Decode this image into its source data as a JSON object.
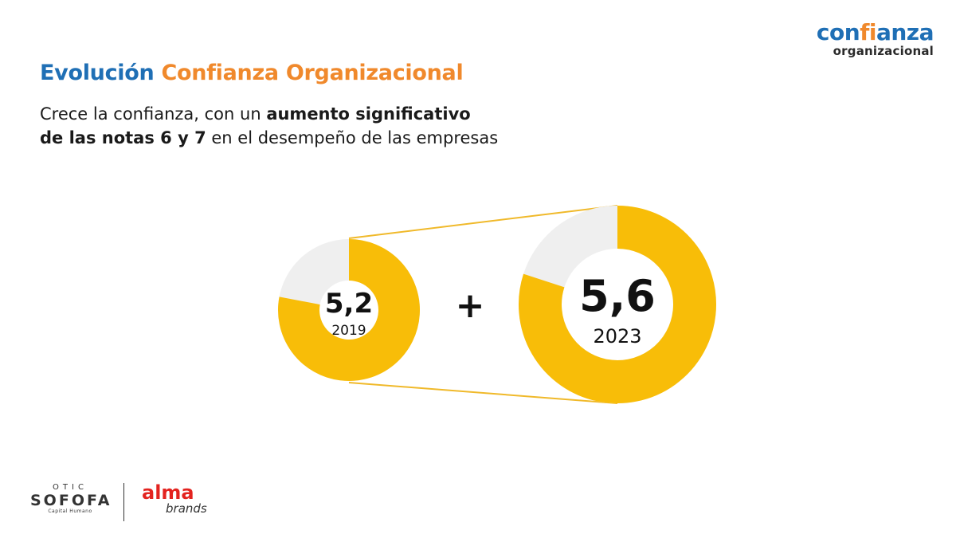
{
  "header": {
    "title_part1": "Evolución",
    "title_part2": "Confianza Organizacional",
    "subtitle_line1_normal": "Crece la confianza, con un ",
    "subtitle_line1_bold": "aumento significativo",
    "subtitle_line2_bold": "de las notas 6 y 7",
    "subtitle_line2_normal": " en el desempeño de las empresas"
  },
  "brand_logo": {
    "word_part1": "con",
    "word_accent": "fi",
    "word_part2": "anza",
    "sub": "organizacional"
  },
  "chart_data": {
    "type": "donut-comparison",
    "connector_symbol": "+",
    "items": [
      {
        "value_label": "5,2",
        "year": "2019",
        "filled_fraction": 0.78
      },
      {
        "value_label": "5,6",
        "year": "2023",
        "filled_fraction": 0.8
      }
    ]
  },
  "colors": {
    "title_blue": "#1f6fb5",
    "title_orange": "#f0892c",
    "donut_fill": "#f8bd08",
    "donut_remainder": "#efefef",
    "connector_line": "#f0b92a"
  },
  "footer": {
    "sofofa_top": "OTIC",
    "sofofa_name": "SOFOFA",
    "sofofa_sub": "Capital Humano",
    "alma_word": "alma",
    "alma_sub": "brands"
  }
}
